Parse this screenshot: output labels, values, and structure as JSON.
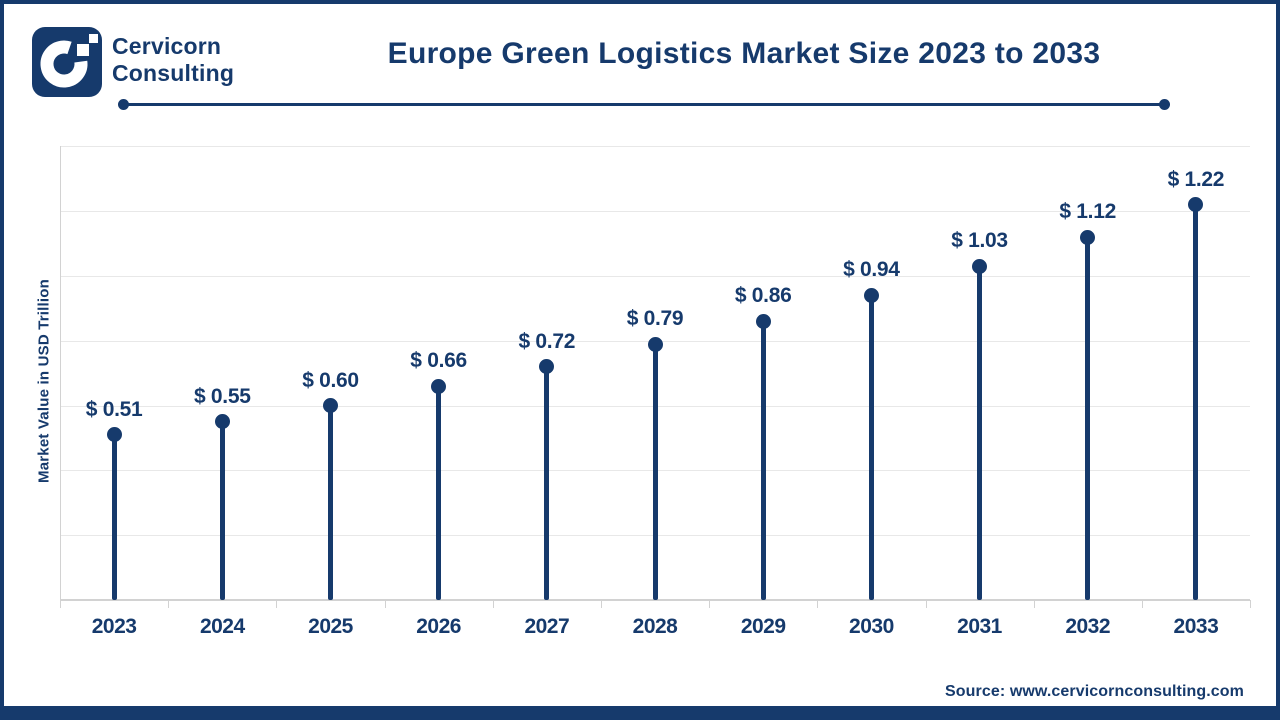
{
  "brand": {
    "name_line1": "Cervicorn",
    "name_line2": "Consulting"
  },
  "title": "Europe Green Logistics Market Size 2023 to 2033",
  "source": "Source: www.cervicornconsulting.com",
  "colors": {
    "navy": "#163a6c",
    "gridline": "#e8e8e8",
    "axis": "#d2d2d2",
    "background": "#ffffff"
  },
  "chart_data": {
    "type": "bar",
    "variant": "lollipop",
    "title": "Europe Green Logistics Market Size 2023 to 2033",
    "categories": [
      "2023",
      "2024",
      "2025",
      "2026",
      "2027",
      "2028",
      "2029",
      "2030",
      "2031",
      "2032",
      "2033"
    ],
    "values": [
      0.51,
      0.55,
      0.6,
      0.66,
      0.72,
      0.79,
      0.86,
      0.94,
      1.03,
      1.12,
      1.22
    ],
    "value_labels": [
      "$ 0.51",
      "$ 0.55",
      "$ 0.60",
      "$ 0.66",
      "$ 0.72",
      "$ 0.79",
      "$ 0.86",
      "$ 0.94",
      "$ 1.03",
      "$ 1.12",
      "$ 1.22"
    ],
    "xlabel": "",
    "ylabel": "Market Value in USD Trillion",
    "ylim": [
      0,
      1.5
    ],
    "gridline_step": 0.2,
    "grid": true,
    "legend": false,
    "unit": "USD Trillion"
  }
}
